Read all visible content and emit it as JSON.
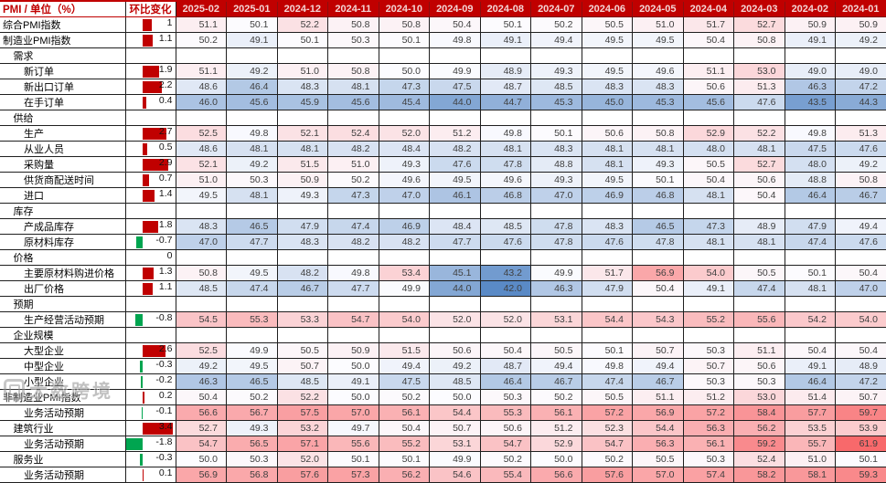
{
  "watermark": {
    "text": "大数跨境",
    "logo": "rounded-square-logo"
  },
  "colors": {
    "header_bg": "#C00000",
    "header_text": "#F4D6D6",
    "positive_bar": "#C00000",
    "negative_bar": "#00A550",
    "scale_low": "#5A8AC6",
    "scale_mid": "#FCFCFF",
    "scale_high": "#F8696B"
  },
  "chart_data": {
    "type": "heatmap",
    "header_label": "PMI / 单位（%）",
    "change_label": "环比变化",
    "columns": [
      "2025-02",
      "2025-01",
      "2024-12",
      "2024-11",
      "2024-10",
      "2024-09",
      "2024-08",
      "2024-07",
      "2024-06",
      "2024-05",
      "2024-04",
      "2024-03",
      "2024-02",
      "2024-01"
    ],
    "color_scale": {
      "min_value": 42,
      "mid_value": 50,
      "max_value": 61.9
    },
    "change_bar_scale": {
      "axis_pct": 34,
      "pct_per_unit": 18,
      "max_positive": 3.4,
      "max_negative": -1.8
    },
    "rows": [
      {
        "label": "综合PMI指数",
        "indent": 0,
        "change": "1",
        "values": [
          51.1,
          50.1,
          52.2,
          50.8,
          50.8,
          50.4,
          50.1,
          50.2,
          50.5,
          51.0,
          51.7,
          52.7,
          50.9,
          50.9
        ]
      },
      {
        "label": "制造业PMI指数",
        "indent": 0,
        "change": "1.1",
        "values": [
          50.2,
          49.1,
          50.1,
          50.3,
          50.1,
          49.8,
          49.1,
          49.4,
          49.5,
          49.5,
          50.4,
          50.8,
          49.1,
          49.2
        ]
      },
      {
        "label": "需求",
        "indent": 1,
        "change": "",
        "values": null
      },
      {
        "label": "新订单",
        "indent": 2,
        "change": "1.9",
        "values": [
          51.1,
          49.2,
          51.0,
          50.8,
          50.0,
          49.9,
          48.9,
          49.3,
          49.5,
          49.6,
          51.1,
          53.0,
          49.0,
          49.0
        ]
      },
      {
        "label": "新出口订单",
        "indent": 2,
        "change": "2.2",
        "values": [
          48.6,
          46.4,
          48.3,
          48.1,
          47.3,
          47.5,
          48.7,
          48.5,
          48.3,
          48.3,
          50.6,
          51.3,
          46.3,
          47.2
        ]
      },
      {
        "label": "在手订单",
        "indent": 2,
        "change": "0.4",
        "values": [
          46.0,
          45.6,
          45.9,
          45.6,
          45.4,
          44.0,
          44.7,
          45.3,
          45.0,
          45.3,
          45.6,
          47.6,
          43.5,
          44.3
        ]
      },
      {
        "label": "供给",
        "indent": 1,
        "change": "",
        "values": null
      },
      {
        "label": "生产",
        "indent": 2,
        "change": "2.7",
        "values": [
          52.5,
          49.8,
          52.1,
          52.4,
          52.0,
          51.2,
          49.8,
          50.1,
          50.6,
          50.8,
          52.9,
          52.2,
          49.8,
          51.3
        ]
      },
      {
        "label": "从业人员",
        "indent": 2,
        "change": "0.5",
        "values": [
          48.6,
          48.1,
          48.1,
          48.2,
          48.4,
          48.2,
          48.1,
          48.3,
          48.1,
          48.1,
          48.0,
          48.1,
          47.5,
          47.6
        ]
      },
      {
        "label": "采购量",
        "indent": 2,
        "change": "2.9",
        "values": [
          52.1,
          49.2,
          51.5,
          51.0,
          49.3,
          47.6,
          47.8,
          48.8,
          48.1,
          49.3,
          50.5,
          52.7,
          48.0,
          49.2
        ]
      },
      {
        "label": "供货商配送时间",
        "indent": 2,
        "change": "0.7",
        "values": [
          51.0,
          50.3,
          50.9,
          50.2,
          49.6,
          49.5,
          49.6,
          49.3,
          49.5,
          50.1,
          50.4,
          50.6,
          48.8,
          50.8
        ]
      },
      {
        "label": "进口",
        "indent": 2,
        "change": "1.4",
        "values": [
          49.5,
          48.1,
          49.3,
          47.3,
          47.0,
          46.1,
          46.8,
          47.0,
          46.9,
          46.8,
          48.1,
          50.4,
          46.4,
          46.7
        ]
      },
      {
        "label": "库存",
        "indent": 1,
        "change": "",
        "values": null
      },
      {
        "label": "产成品库存",
        "indent": 2,
        "change": "1.8",
        "values": [
          48.3,
          46.5,
          47.9,
          47.4,
          46.9,
          48.4,
          48.5,
          47.8,
          48.3,
          46.5,
          47.3,
          48.9,
          47.9,
          49.4
        ]
      },
      {
        "label": "原材料库存",
        "indent": 2,
        "change": "-0.7",
        "values": [
          47.0,
          47.7,
          48.3,
          48.2,
          48.2,
          47.7,
          47.6,
          47.8,
          47.6,
          47.8,
          48.1,
          48.1,
          47.4,
          47.6
        ]
      },
      {
        "label": "价格",
        "indent": 1,
        "change": "0",
        "values": null
      },
      {
        "label": "主要原材料购进价格",
        "indent": 2,
        "change": "1.3",
        "values": [
          50.8,
          49.5,
          48.2,
          49.8,
          53.4,
          45.1,
          43.2,
          49.9,
          51.7,
          56.9,
          54.0,
          50.5,
          50.1,
          50.4
        ]
      },
      {
        "label": "出厂价格",
        "indent": 2,
        "change": "1.1",
        "values": [
          48.5,
          47.4,
          46.7,
          47.7,
          49.9,
          44.0,
          42.0,
          46.3,
          47.9,
          50.4,
          49.1,
          47.4,
          48.1,
          47.0
        ]
      },
      {
        "label": "预期",
        "indent": 1,
        "change": "",
        "values": null
      },
      {
        "label": "生产经营活动预期",
        "indent": 2,
        "change": "-0.8",
        "values": [
          54.5,
          55.3,
          53.3,
          54.7,
          54.0,
          52.0,
          52.0,
          53.1,
          54.4,
          54.3,
          55.2,
          55.6,
          54.2,
          54.0
        ]
      },
      {
        "label": "企业规模",
        "indent": 1,
        "change": "",
        "values": null
      },
      {
        "label": "大型企业",
        "indent": 2,
        "change": "2.6",
        "values": [
          52.5,
          49.9,
          50.5,
          50.9,
          51.5,
          50.6,
          50.4,
          50.5,
          50.1,
          50.7,
          50.3,
          51.1,
          50.4,
          50.4
        ]
      },
      {
        "label": "中型企业",
        "indent": 2,
        "change": "-0.3",
        "values": [
          49.2,
          49.5,
          50.7,
          50.0,
          49.4,
          49.2,
          48.7,
          49.4,
          49.8,
          49.4,
          50.7,
          50.6,
          49.1,
          48.9
        ]
      },
      {
        "label": "小型企业",
        "indent": 2,
        "change": "-0.2",
        "values": [
          46.3,
          46.5,
          48.5,
          49.1,
          47.5,
          48.5,
          46.4,
          46.7,
          47.4,
          46.7,
          50.3,
          50.3,
          46.4,
          47.2
        ]
      },
      {
        "label": "非制造业PMI指数",
        "indent": 0,
        "change": "0.2",
        "values": [
          50.4,
          50.2,
          52.2,
          50.0,
          50.2,
          50.0,
          50.3,
          50.2,
          50.5,
          51.1,
          51.2,
          53.0,
          51.4,
          50.7
        ]
      },
      {
        "label": "业务活动预期",
        "indent": 2,
        "change": "-0.1",
        "values": [
          56.6,
          56.7,
          57.5,
          57.0,
          56.1,
          54.4,
          55.3,
          56.1,
          57.2,
          56.9,
          57.2,
          58.4,
          57.7,
          59.7
        ]
      },
      {
        "label": "建筑行业",
        "indent": 1,
        "change": "3.4",
        "values": [
          52.7,
          49.3,
          53.2,
          49.7,
          50.4,
          50.7,
          50.6,
          51.2,
          52.3,
          54.4,
          56.3,
          56.2,
          53.5,
          53.9
        ]
      },
      {
        "label": "业务活动预期",
        "indent": 2,
        "change": "-1.8",
        "values": [
          54.7,
          56.5,
          57.1,
          55.6,
          55.2,
          53.1,
          54.7,
          52.9,
          54.7,
          56.3,
          56.1,
          59.2,
          55.7,
          61.9
        ]
      },
      {
        "label": "服务业",
        "indent": 1,
        "change": "-0.3",
        "values": [
          50.0,
          50.3,
          52.0,
          50.1,
          50.1,
          49.9,
          50.2,
          50.0,
          50.2,
          50.5,
          50.3,
          52.4,
          51.0,
          50.1
        ]
      },
      {
        "label": "业务活动预期",
        "indent": 2,
        "change": "0.1",
        "values": [
          56.9,
          56.8,
          57.6,
          57.3,
          56.2,
          54.6,
          55.4,
          56.6,
          57.6,
          57.0,
          57.4,
          58.2,
          58.1,
          59.3
        ]
      }
    ]
  }
}
